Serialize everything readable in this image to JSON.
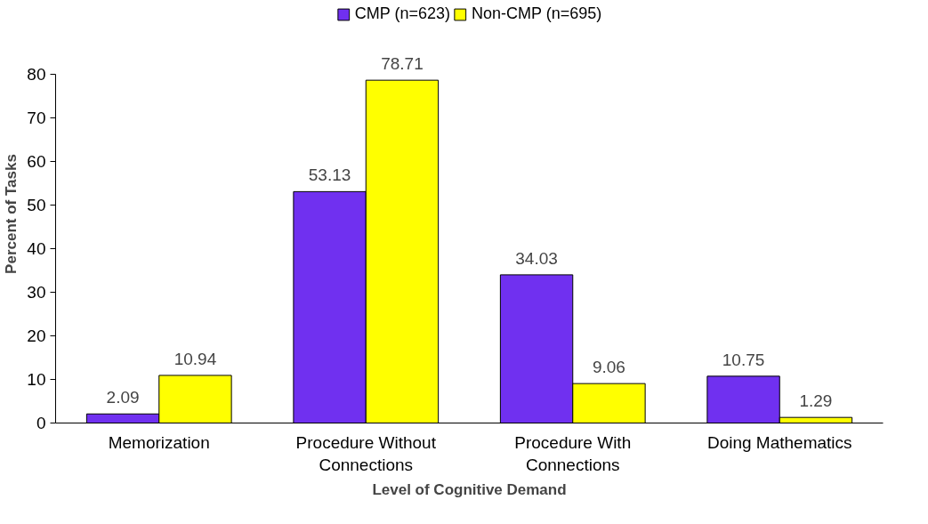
{
  "chart_data": {
    "type": "bar",
    "xlabel": "Level of Cognitive Demand",
    "ylabel": "Percent of Tasks",
    "categories": [
      "Memorization",
      "Procedure Without Connections",
      "Procedure With Connections",
      "Doing Mathematics"
    ],
    "series": [
      {
        "name": "CMP (n=623)",
        "color": "#7030f0",
        "values": [
          2.09,
          53.13,
          34.03,
          10.75
        ]
      },
      {
        "name": "Non-CMP (n=695)",
        "color": "#ffff00",
        "values": [
          10.94,
          78.71,
          9.06,
          1.29
        ]
      }
    ],
    "ylim": [
      0,
      80
    ],
    "yticks": [
      0,
      10,
      20,
      30,
      40,
      50,
      60,
      70,
      80
    ],
    "grid": false,
    "legend": "top",
    "data_labels": true
  }
}
